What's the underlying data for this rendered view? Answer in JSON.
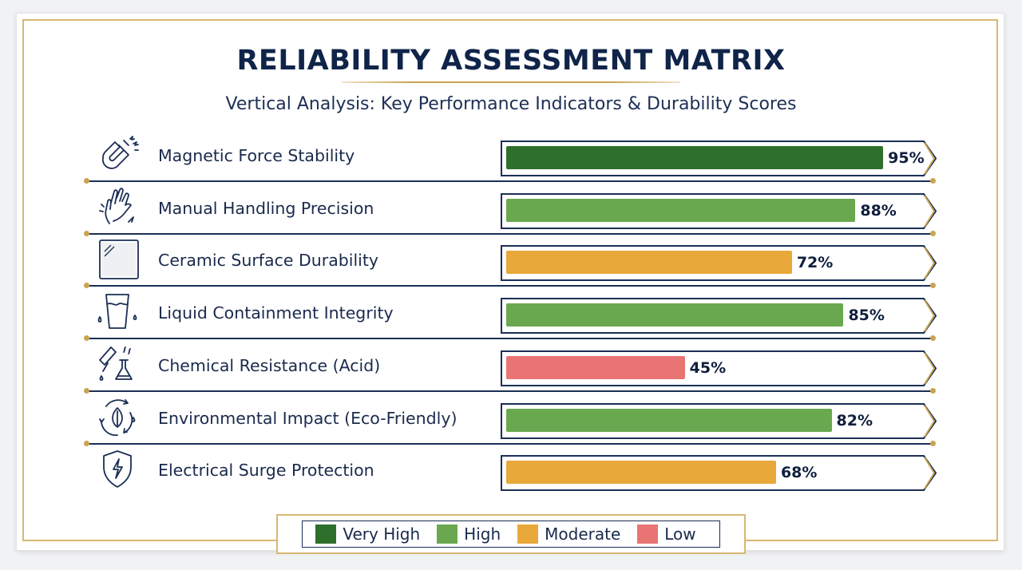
{
  "header": {
    "title": "RELIABILITY ASSESSMENT MATRIX",
    "subtitle": "Vertical Analysis: Key Performance Indicators & Durability Scores"
  },
  "chart_data": {
    "type": "bar",
    "orientation": "horizontal",
    "title": "RELIABILITY ASSESSMENT MATRIX",
    "subtitle": "Vertical Analysis: Key Performance Indicators & Durability Scores",
    "xlim": [
      0,
      100
    ],
    "unit": "%",
    "categories": [
      "Magnetic Force Stability",
      "Manual Handling Precision",
      "Ceramic Surface Durability",
      "Liquid Containment Integrity",
      "Chemical Resistance (Acid)",
      "Environmental Impact (Eco-Friendly)",
      "Electrical Surge Protection"
    ],
    "values": [
      95,
      88,
      72,
      85,
      45,
      82,
      68
    ],
    "value_labels": [
      "95%",
      "88%",
      "72%",
      "85%",
      "45%",
      "82%",
      "68%"
    ],
    "ratings": [
      "Very High",
      "High",
      "Moderate",
      "High",
      "Low",
      "High",
      "Moderate"
    ],
    "icons": [
      "magnet-icon",
      "hand-icon",
      "ceramic-tile-icon",
      "water-glass-icon",
      "chemistry-flask-icon",
      "eco-leaf-icon",
      "shield-bolt-icon"
    ],
    "legend": [
      {
        "label": "Very High",
        "color": "#2e6f2c"
      },
      {
        "label": "High",
        "color": "#6aa84f"
      },
      {
        "label": "Moderate",
        "color": "#e8a83a"
      },
      {
        "label": "Low",
        "color": "#e87474"
      }
    ],
    "legend_position": "bottom-center",
    "grid": false
  }
}
